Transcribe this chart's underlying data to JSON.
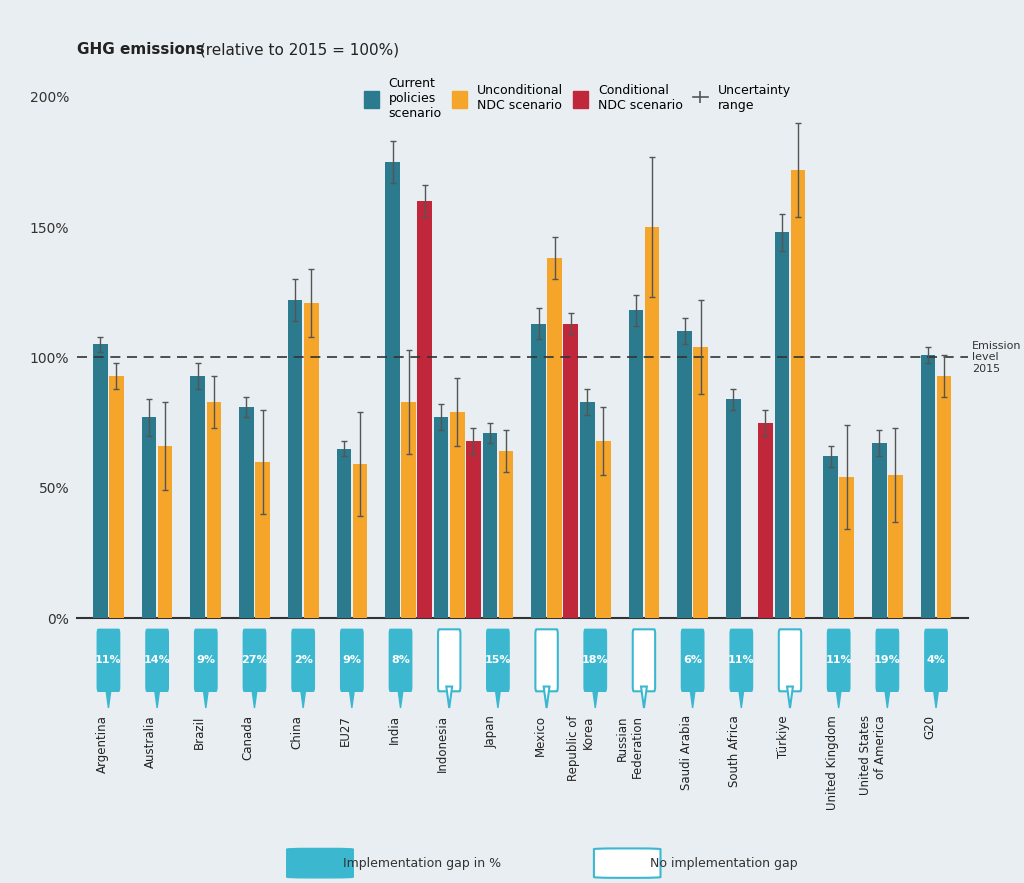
{
  "countries": [
    "Argentina",
    "Australia",
    "Brazil",
    "Canada",
    "China",
    "EU27",
    "India",
    "Indonesia",
    "Japan",
    "Mexico",
    "Republic of\nKorea",
    "Russian\nFederation",
    "Saudi Arabia",
    "South Africa",
    "Türkiye",
    "United Kingdom",
    "United States\nof America",
    "G20"
  ],
  "country_labels": [
    "Argentina",
    "Australia",
    "Brazil",
    "Canada",
    "China",
    "EU27",
    "India",
    "Indonesia",
    "Japan",
    "Mexico",
    "Republic of\nKorea",
    "Russian\nFederation",
    "Saudi Arabia",
    "South Africa",
    "Türkiye",
    "United Kingdom",
    "United States\nof America",
    "G20"
  ],
  "current_policies": [
    105,
    77,
    93,
    81,
    122,
    65,
    175,
    77,
    71,
    113,
    83,
    118,
    110,
    84,
    148,
    62,
    67,
    101
  ],
  "unconditional_ndc": [
    93,
    66,
    83,
    60,
    121,
    59,
    83,
    79,
    64,
    138,
    68,
    150,
    104,
    null,
    172,
    54,
    55,
    93
  ],
  "conditional_ndc": [
    null,
    null,
    null,
    null,
    null,
    null,
    160,
    68,
    null,
    113,
    null,
    null,
    null,
    75,
    null,
    null,
    null,
    null
  ],
  "current_policies_err_low": [
    3,
    7,
    5,
    4,
    8,
    3,
    8,
    5,
    4,
    6,
    5,
    6,
    5,
    4,
    7,
    4,
    5,
    3
  ],
  "current_policies_err_high": [
    3,
    7,
    5,
    4,
    8,
    3,
    8,
    5,
    4,
    6,
    5,
    6,
    5,
    4,
    7,
    4,
    5,
    3
  ],
  "unconditional_ndc_err_low": [
    5,
    17,
    10,
    20,
    13,
    20,
    20,
    13,
    8,
    8,
    13,
    27,
    18,
    null,
    18,
    20,
    18,
    8
  ],
  "unconditional_ndc_err_high": [
    5,
    17,
    10,
    20,
    13,
    20,
    20,
    13,
    8,
    8,
    13,
    27,
    18,
    null,
    18,
    20,
    18,
    8
  ],
  "conditional_ndc_err_low": [
    null,
    null,
    null,
    null,
    null,
    null,
    6,
    5,
    null,
    4,
    null,
    null,
    null,
    5,
    null,
    null,
    null,
    null
  ],
  "conditional_ndc_err_high": [
    null,
    null,
    null,
    null,
    null,
    null,
    6,
    5,
    null,
    4,
    null,
    null,
    null,
    5,
    null,
    null,
    null,
    null
  ],
  "gap_labels": [
    "11%",
    "14%",
    "9%",
    "27%",
    "2%",
    "9%",
    "8%",
    null,
    "15%",
    null,
    "18%",
    null,
    "6%",
    "11%",
    null,
    "11%",
    "19%",
    "4%"
  ],
  "has_gap": [
    true,
    true,
    true,
    true,
    true,
    true,
    true,
    false,
    true,
    false,
    true,
    false,
    true,
    true,
    false,
    true,
    true,
    true
  ],
  "colors": {
    "current": "#2B7A8D",
    "unconditional": "#F5A52A",
    "conditional": "#C1273A",
    "background": "#E8EEF2",
    "gap_fill": "#3BB8D0",
    "gap_border": "#3BB8D0",
    "error": "#555555"
  },
  "title_bold": "GHG emissions",
  "title_normal": " (relative to 2015 = 100%)",
  "ylim": [
    0,
    210
  ],
  "yticks": [
    0,
    50,
    100,
    150,
    200
  ],
  "ytick_labels": [
    "0%",
    "50%",
    "100%",
    "150%",
    "200%"
  ]
}
